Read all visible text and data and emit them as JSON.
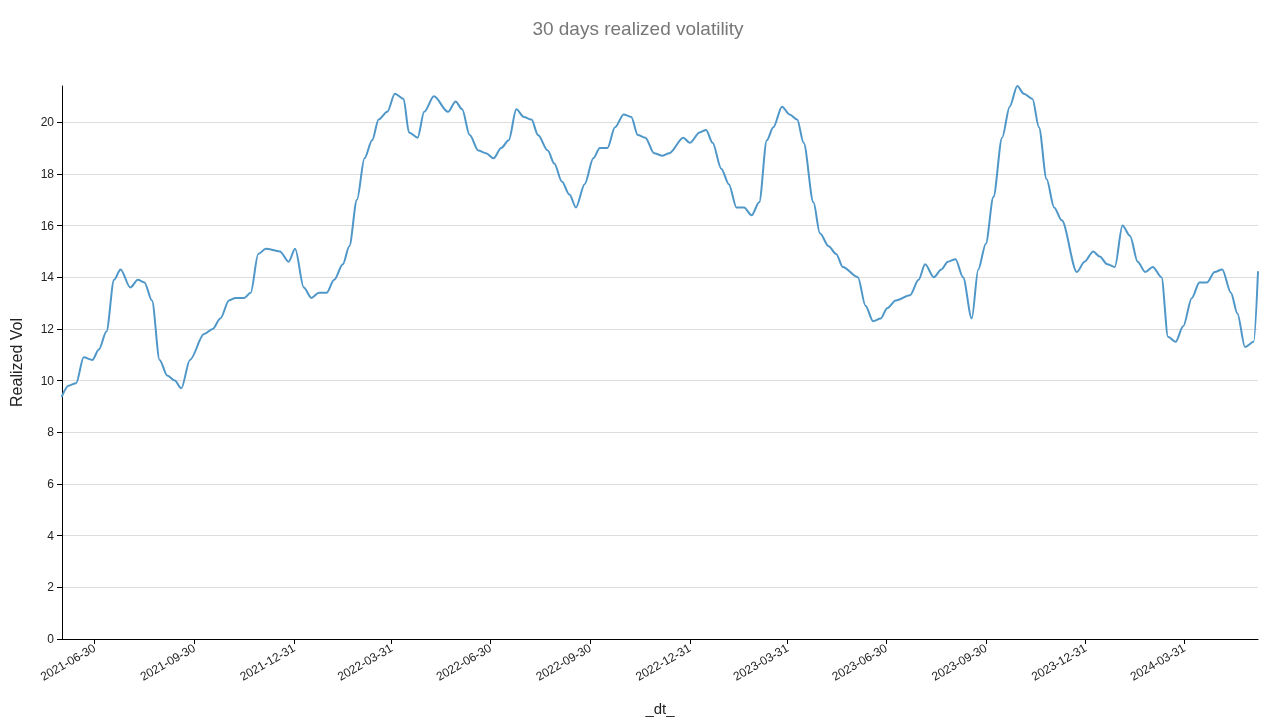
{
  "chart_data": {
    "type": "line",
    "title": "30 days realized volatility",
    "xlabel": "_dt_",
    "ylabel": "Realized Vol",
    "x": [
      "2021-05-31",
      "2021-06-06",
      "2021-06-13",
      "2021-06-20",
      "2021-06-28",
      "2021-07-04",
      "2021-07-11",
      "2021-07-18",
      "2021-07-24",
      "2021-08-02",
      "2021-08-09",
      "2021-08-15",
      "2021-08-22",
      "2021-08-29",
      "2021-09-05",
      "2021-09-12",
      "2021-09-18",
      "2021-09-26",
      "2021-10-09",
      "2021-10-17",
      "2021-10-24",
      "2021-11-01",
      "2021-11-07",
      "2021-11-15",
      "2021-11-21",
      "2021-11-28",
      "2021-12-05",
      "2021-12-18",
      "2021-12-26",
      "2022-01-01",
      "2022-01-09",
      "2022-01-16",
      "2022-01-23",
      "2022-01-30",
      "2022-02-06",
      "2022-02-14",
      "2022-02-20",
      "2022-02-27",
      "2022-03-06",
      "2022-03-13",
      "2022-03-19",
      "2022-03-27",
      "2022-04-03",
      "2022-04-11",
      "2022-04-16",
      "2022-04-24",
      "2022-04-30",
      "2022-05-09",
      "2022-05-22",
      "2022-05-29",
      "2022-06-04",
      "2022-06-11",
      "2022-06-19",
      "2022-06-26",
      "2022-07-03",
      "2022-07-10",
      "2022-07-17",
      "2022-07-24",
      "2022-07-31",
      "2022-08-07",
      "2022-08-13",
      "2022-08-22",
      "2022-08-28",
      "2022-09-04",
      "2022-09-11",
      "2022-09-17",
      "2022-09-25",
      "2022-10-03",
      "2022-10-09",
      "2022-10-16",
      "2022-10-23",
      "2022-10-31",
      "2022-11-07",
      "2022-11-13",
      "2022-11-20",
      "2022-11-28",
      "2022-12-06",
      "2022-12-12",
      "2022-12-25",
      "2022-12-31",
      "2023-01-09",
      "2023-01-15",
      "2023-01-21",
      "2023-01-29",
      "2023-02-05",
      "2023-02-12",
      "2023-02-19",
      "2023-02-26",
      "2023-03-05",
      "2023-03-12",
      "2023-03-18",
      "2023-03-26",
      "2023-04-02",
      "2023-04-09",
      "2023-04-15",
      "2023-04-24",
      "2023-04-30",
      "2023-05-08",
      "2023-05-15",
      "2023-05-21",
      "2023-06-04",
      "2023-06-11",
      "2023-06-18",
      "2023-06-25",
      "2023-07-01",
      "2023-07-09",
      "2023-07-22",
      "2023-07-30",
      "2023-08-05",
      "2023-08-13",
      "2023-08-20",
      "2023-08-26",
      "2023-09-02",
      "2023-09-09",
      "2023-09-17",
      "2023-09-23",
      "2023-09-30",
      "2023-10-07",
      "2023-10-15",
      "2023-10-22",
      "2023-10-29",
      "2023-11-04",
      "2023-11-12",
      "2023-11-18",
      "2023-11-25",
      "2023-12-02",
      "2023-12-09",
      "2023-12-23",
      "2023-12-30",
      "2024-01-07",
      "2024-01-13",
      "2024-01-20",
      "2024-01-27",
      "2024-02-03",
      "2024-02-10",
      "2024-02-17",
      "2024-02-24",
      "2024-03-02",
      "2024-03-10",
      "2024-03-16",
      "2024-03-23",
      "2024-03-30",
      "2024-04-07",
      "2024-04-14",
      "2024-04-21",
      "2024-04-28",
      "2024-05-05",
      "2024-05-13",
      "2024-05-19",
      "2024-05-26",
      "2024-06-03",
      "2024-06-07"
    ],
    "series": [
      {
        "color": "#4f97c8",
        "values": [
          9.4,
          9.8,
          9.9,
          10.9,
          10.8,
          11.2,
          11.9,
          13.9,
          14.3,
          13.6,
          13.9,
          13.8,
          13.1,
          10.8,
          10.2,
          10.0,
          9.7,
          10.8,
          11.8,
          12.0,
          12.4,
          13.1,
          13.2,
          13.2,
          13.4,
          14.9,
          15.1,
          15.0,
          14.6,
          15.1,
          13.6,
          13.2,
          13.4,
          13.4,
          13.9,
          14.5,
          15.2,
          17.0,
          18.6,
          19.3,
          20.1,
          20.4,
          21.1,
          20.9,
          19.6,
          19.4,
          20.4,
          21.0,
          20.4,
          20.8,
          20.5,
          19.5,
          18.9,
          18.8,
          18.6,
          19.0,
          19.3,
          20.5,
          20.2,
          20.1,
          19.5,
          18.9,
          18.4,
          17.7,
          17.2,
          16.7,
          17.6,
          18.6,
          19.0,
          19.0,
          19.8,
          20.3,
          20.2,
          19.5,
          19.4,
          18.8,
          18.7,
          18.8,
          19.4,
          19.2,
          19.6,
          19.7,
          19.2,
          18.2,
          17.6,
          16.7,
          16.7,
          16.4,
          16.9,
          19.3,
          19.8,
          20.6,
          20.3,
          20.1,
          19.2,
          16.9,
          15.7,
          15.2,
          14.9,
          14.4,
          14.0,
          12.9,
          12.3,
          12.4,
          12.8,
          13.1,
          13.3,
          13.9,
          14.5,
          14.0,
          14.3,
          14.6,
          14.7,
          14.0,
          12.4,
          14.3,
          15.3,
          17.1,
          19.4,
          20.6,
          21.4,
          21.1,
          20.9,
          19.8,
          17.8,
          16.7,
          16.2,
          14.2,
          14.6,
          15.0,
          14.8,
          14.5,
          14.4,
          16.0,
          15.6,
          14.6,
          14.2,
          14.4,
          14.0,
          11.7,
          11.5,
          12.1,
          13.2,
          13.8,
          13.8,
          14.2,
          14.3,
          13.4,
          12.6,
          11.3,
          11.5,
          14.2
        ]
      }
    ],
    "xlim": [
      "2021-05-31",
      "2024-06-07"
    ],
    "xticks": [
      "2021-06-30",
      "2021-09-30",
      "2021-12-31",
      "2022-03-31",
      "2022-06-30",
      "2022-09-30",
      "2022-12-31",
      "2023-03-31",
      "2023-06-30",
      "2023-09-30",
      "2023-12-31",
      "2024-03-31"
    ],
    "ylim": [
      0,
      21.4
    ],
    "yticks": [
      0,
      2,
      4,
      6,
      8,
      10,
      12,
      14,
      16,
      18,
      20
    ],
    "grid": "y",
    "marker": "none",
    "line_style": "solid"
  }
}
